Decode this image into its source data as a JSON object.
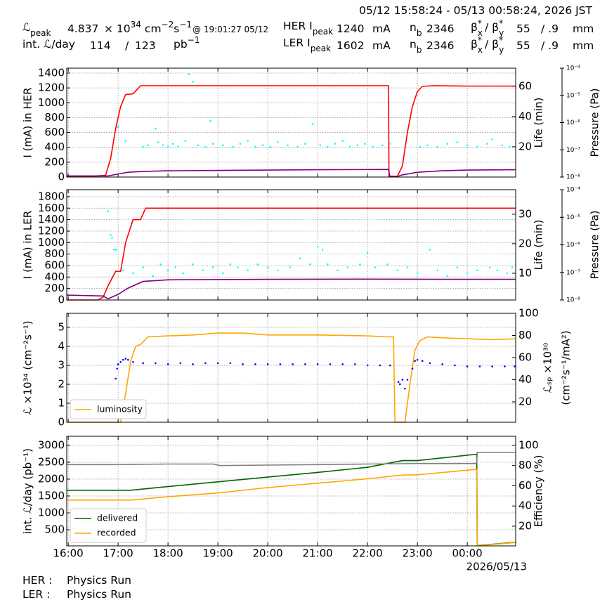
{
  "header": {
    "time_range": "05/12 15:58:24 - 05/13 00:58:24, 2026 JST",
    "lum": {
      "symbol": "ℒ",
      "sub": "peak",
      "value": 4.837,
      "times": "× 10",
      "exp": "34",
      "cm": "cm",
      "cm_exp": "−2",
      "s": "s",
      "s_exp": "−1",
      "time": "@ 19:01:27 05/12"
    },
    "int": {
      "label": "int. ℒ/day",
      "value": 114,
      "sep": "/",
      "value2": 123,
      "unit": "pb",
      "unit_exp": "−1"
    },
    "her": {
      "label": "HER I",
      "sub": "peak",
      "current": 1240,
      "unit": "mA",
      "nb": "n",
      "nb_sub": "b",
      "bunches": 2346,
      "beta": "β",
      "star": "*",
      "x": "x",
      "sep": "/ β",
      "y": "y",
      "beta_x": 55,
      "beta_y": "/ .9",
      "mm": "mm"
    },
    "ler": {
      "label": "LER I",
      "sub": "peak",
      "current": 1602,
      "unit": "mA",
      "nb": "n",
      "nb_sub": "b",
      "bunches": 2346,
      "beta": "β",
      "star": "*",
      "x": "x",
      "sep": "/ β",
      "y": "y",
      "beta_x": 55,
      "beta_y": "/ .9",
      "mm": "mm"
    }
  },
  "footer": {
    "her_label": "HER :",
    "her_state": "Physics Run",
    "ler_label": "LER :",
    "ler_state": "Physics Run"
  },
  "chart_data": [
    {
      "type": "line",
      "grid": true,
      "ylabel": "I (mA) in HER",
      "y2label": [
        "Life (min)"
      ],
      "y3label": "Pressure (Pa)",
      "xlim": [
        15.97,
        24.97
      ],
      "xticks": [
        16,
        17,
        18,
        19,
        20,
        21,
        22,
        23,
        24
      ],
      "ylim": [
        0,
        1466
      ],
      "yticks": [
        0,
        200,
        400,
        600,
        800,
        1000,
        1200,
        1400
      ],
      "y2lim": [
        0,
        72
      ],
      "y2ticks": [
        20,
        40,
        60
      ],
      "y3lim": [
        1e-08,
        0.0001
      ],
      "y3_log": true,
      "y3ticks": [
        {
          "value": 1e-08,
          "label": "10⁻⁸"
        },
        {
          "value": 1e-07,
          "label": "10⁻⁷"
        },
        {
          "value": 1e-06,
          "label": "10⁻⁶"
        },
        {
          "value": 1e-05,
          "label": "10⁻⁵"
        },
        {
          "value": 0.0001,
          "label": "10⁻⁴"
        }
      ],
      "series": [
        {
          "color": "#ff0000",
          "x": [
            15.97,
            16.5,
            16.75,
            16.85,
            16.95,
            17.05,
            17.15,
            17.3,
            17.45,
            18,
            19,
            20,
            21,
            22,
            22.42,
            22.43,
            22.6,
            22.7,
            22.8,
            22.9,
            23.0,
            23.1,
            23.3,
            24,
            24.97
          ],
          "values": [
            10,
            10,
            25,
            250,
            650,
            950,
            1110,
            1120,
            1230,
            1230,
            1230,
            1230,
            1230,
            1230,
            1230,
            10,
            10,
            150,
            600,
            950,
            1150,
            1220,
            1230,
            1225,
            1225
          ]
        },
        {
          "color": "#00ffff",
          "mode": "markers",
          "axis": "y2",
          "x": [
            17.0,
            17.15,
            17.5,
            17.6,
            17.75,
            17.8,
            17.9,
            18.0,
            18.1,
            18.2,
            18.35,
            18.42,
            18.5,
            18.6,
            18.75,
            18.85,
            18.9,
            19.1,
            19.3,
            19.45,
            19.6,
            19.75,
            19.9,
            20.05,
            20.2,
            20.4,
            20.6,
            20.75,
            20.9,
            21.05,
            21.2,
            21.35,
            21.5,
            21.65,
            21.8,
            21.95,
            22.1,
            22.3,
            22.45,
            23.05,
            23.2,
            23.4,
            23.6,
            23.8,
            24.0,
            24.2,
            24.4,
            24.5,
            24.7,
            24.85
          ],
          "values": [
            33,
            24,
            20,
            21,
            32,
            23,
            21,
            20,
            22,
            20,
            24,
            68,
            63,
            21,
            20,
            37,
            22,
            21,
            20,
            22,
            24,
            20,
            21,
            20,
            23,
            21,
            20,
            22,
            35,
            21,
            20,
            22,
            24,
            20,
            21,
            22,
            20,
            21,
            22,
            20,
            21,
            20,
            22,
            23,
            21,
            20,
            22,
            25,
            21,
            20
          ]
        },
        {
          "color": "#800080",
          "axis": "y3",
          "x": [
            15.97,
            16.8,
            17.0,
            17.2,
            17.5,
            18,
            19,
            20,
            21,
            22.42,
            22.45,
            22.6,
            22.7,
            23.0,
            23.5,
            24,
            24.97
          ],
          "values": [
            1.1e-08,
            1.1e-08,
            1.3e-08,
            1.5e-08,
            1.6e-08,
            1.7e-08,
            1.75e-08,
            1.8e-08,
            1.85e-08,
            1.9e-08,
            1.05e-08,
            1.05e-08,
            1.2e-08,
            1.5e-08,
            1.7e-08,
            1.8e-08,
            1.85e-08
          ]
        }
      ]
    },
    {
      "type": "line",
      "grid": true,
      "ylabel": "I (mA) in LER",
      "y2label": [
        "Life (min)"
      ],
      "y3label": "Pressure (Pa)",
      "xlim": [
        15.97,
        24.97
      ],
      "xticks": [
        16,
        17,
        18,
        19,
        20,
        21,
        22,
        23,
        24
      ],
      "ylim": [
        0,
        1922
      ],
      "yticks": [
        0,
        200,
        400,
        600,
        800,
        1000,
        1200,
        1400,
        1600,
        1800
      ],
      "y2lim": [
        0.95,
        38.3
      ],
      "y2ticks": [
        10,
        20,
        30
      ],
      "y3lim": [
        1e-08,
        0.0001
      ],
      "y3_log": true,
      "y3ticks": [
        {
          "value": 1e-08,
          "label": "10⁻⁸"
        },
        {
          "value": 1e-07,
          "label": "10⁻⁷"
        },
        {
          "value": 1e-06,
          "label": "10⁻⁶"
        },
        {
          "value": 1e-05,
          "label": "10⁻⁵"
        },
        {
          "value": 0.0001,
          "label": "10⁻⁴"
        }
      ],
      "series": [
        {
          "color": "#ff0000",
          "x": [
            15.97,
            16.6,
            16.7,
            16.8,
            16.95,
            17.05,
            17.15,
            17.3,
            17.45,
            17.55,
            18,
            20,
            22,
            24,
            24.97
          ],
          "values": [
            0,
            0,
            50,
            250,
            500,
            500,
            1000,
            1400,
            1400,
            1600,
            1600,
            1600,
            1600,
            1600,
            1600
          ]
        },
        {
          "color": "#00ffff",
          "mode": "markers",
          "axis": "y2",
          "x": [
            16.8,
            16.85,
            16.88,
            16.92,
            16.96,
            17.1,
            17.3,
            17.5,
            17.7,
            17.85,
            18.0,
            18.15,
            18.3,
            18.5,
            18.7,
            18.9,
            19.1,
            19.25,
            19.4,
            19.6,
            19.8,
            20.0,
            20.2,
            20.45,
            20.65,
            20.85,
            21.0,
            21.1,
            21.2,
            21.4,
            21.6,
            21.85,
            22.0,
            22.15,
            22.4,
            22.6,
            22.8,
            23.0,
            23.25,
            23.4,
            23.6,
            23.8,
            24.0,
            24.2,
            24.45,
            24.6,
            24.8,
            24.9
          ],
          "values": [
            31,
            23,
            22,
            18,
            18,
            11,
            10,
            12,
            9,
            13,
            11,
            12,
            10,
            13,
            11,
            12,
            10,
            13,
            12,
            11,
            13,
            12,
            11,
            12,
            15,
            13,
            19,
            18,
            13,
            11,
            12,
            13,
            17,
            12,
            13,
            11,
            12,
            10,
            18,
            11,
            9,
            12,
            10,
            11,
            12,
            11,
            10,
            12
          ]
        },
        {
          "color": "#800080",
          "axis": "y3",
          "x": [
            15.97,
            16.7,
            16.8,
            17.0,
            17.2,
            17.5,
            18,
            20,
            22,
            24,
            24.97
          ],
          "values": [
            1.5e-08,
            1.4e-08,
            1.1e-08,
            1.6e-08,
            2.7e-08,
            4.7e-08,
            5.4e-08,
            5.6e-08,
            5.7e-08,
            5.6e-08,
            5.6e-08
          ]
        }
      ]
    },
    {
      "type": "line",
      "grid": true,
      "legend": "lower left",
      "ylabel": "ℒ ×10³⁴ (cm⁻²s⁻¹)",
      "y2label": [
        "ℒₛₚ ×10³⁰",
        "(cm⁻²s⁻¹/mA²)"
      ],
      "xlim": [
        15.97,
        24.97
      ],
      "xticks": [
        16,
        17,
        18,
        19,
        20,
        21,
        22,
        23,
        24
      ],
      "ylim": [
        0,
        5.74
      ],
      "yticks": [
        0,
        1,
        2,
        3,
        4,
        5
      ],
      "y2lim": [
        1.6,
        100
      ],
      "y2ticks": [
        20,
        40,
        60,
        80,
        100
      ],
      "series": [
        {
          "name": "luminosity",
          "color": "#ffa500",
          "x": [
            15.97,
            17.05,
            17.15,
            17.25,
            17.35,
            17.45,
            17.6,
            18,
            18.5,
            19,
            19.5,
            20,
            21,
            22,
            22.4,
            22.52,
            22.55,
            22.75,
            22.85,
            22.95,
            23.05,
            23.2,
            23.5,
            24,
            24.5,
            24.97
          ],
          "values": [
            0,
            0,
            1.5,
            3.2,
            4.0,
            4.1,
            4.5,
            4.55,
            4.6,
            4.7,
            4.7,
            4.6,
            4.6,
            4.55,
            4.5,
            4.5,
            0,
            0,
            2.0,
            3.8,
            4.3,
            4.5,
            4.45,
            4.4,
            4.35,
            4.4
          ]
        },
        {
          "color": "#0000ff",
          "mode": "markers",
          "axis": "y2",
          "x": [
            16.95,
            16.98,
            17.0,
            17.05,
            17.1,
            17.15,
            17.2,
            17.3,
            17.5,
            17.75,
            18.0,
            18.25,
            18.5,
            18.75,
            19.0,
            19.25,
            19.5,
            19.75,
            20.0,
            20.25,
            20.5,
            20.75,
            21.0,
            21.25,
            21.5,
            21.75,
            22.0,
            22.25,
            22.45,
            22.62,
            22.65,
            22.7,
            22.75,
            22.8,
            22.9,
            22.95,
            23.0,
            23.1,
            23.25,
            23.5,
            23.75,
            24.0,
            24.25,
            24.5,
            24.75,
            24.95
          ],
          "values": [
            41,
            50,
            54,
            56,
            58,
            59,
            58,
            56,
            55,
            55,
            54,
            55,
            54,
            55,
            55,
            55,
            54,
            54,
            54,
            54,
            54,
            54,
            54,
            54,
            54,
            54,
            53,
            53,
            53,
            38,
            36,
            40,
            32,
            40,
            50,
            57,
            58,
            57,
            55,
            54,
            53,
            52,
            52,
            52,
            52,
            52
          ]
        }
      ]
    },
    {
      "type": "line",
      "grid": true,
      "legend": "lower left",
      "ylabel": "int. ℒ/day (pb⁻¹)",
      "y2label": [
        "Efficiency (%)"
      ],
      "xlabel": "2026/05/13",
      "xlim": [
        15.97,
        24.97
      ],
      "xticks": [
        {
          "value": 16,
          "label": "16:00"
        },
        {
          "value": 17,
          "label": "17:00"
        },
        {
          "value": 18,
          "label": "18:00"
        },
        {
          "value": 19,
          "label": "19:00"
        },
        {
          "value": 20,
          "label": "20:00"
        },
        {
          "value": 21,
          "label": "21:00"
        },
        {
          "value": 22,
          "label": "22:00"
        },
        {
          "value": 23,
          "label": "23:00"
        },
        {
          "value": 24,
          "label": "00:00"
        }
      ],
      "ylim": [
        21,
        3271
      ],
      "yticks": [
        500,
        1000,
        1500,
        2000,
        2500,
        3000
      ],
      "y2lim": [
        0.5,
        109
      ],
      "y2ticks": [
        20,
        40,
        60,
        80,
        100
      ],
      "series": [
        {
          "name": "delivered",
          "color": "#006400",
          "x": [
            15.97,
            17.25,
            18,
            19,
            20,
            21,
            22,
            22.7,
            23.0,
            24.19,
            24.2,
            24.97
          ],
          "values": [
            1670,
            1670,
            1780,
            1920,
            2060,
            2200,
            2350,
            2550,
            2550,
            2740,
            30,
            130
          ]
        },
        {
          "name": "recorded",
          "color": "#ffa500",
          "x": [
            15.97,
            17.25,
            18,
            19,
            20,
            21,
            22,
            22.7,
            23.0,
            24.19,
            24.2,
            24.97
          ],
          "values": [
            1380,
            1380,
            1480,
            1590,
            1750,
            1880,
            2010,
            2120,
            2130,
            2290,
            25,
            120
          ]
        },
        {
          "color": "#808080",
          "axis": "y2",
          "x": [
            15.97,
            17.0,
            18.0,
            18.9,
            19.05,
            20,
            21,
            22,
            23,
            24.19,
            24.2,
            24.97
          ],
          "values": [
            81,
            81,
            81.5,
            81.5,
            80,
            80.5,
            81,
            81.5,
            82,
            82,
            93,
            93
          ]
        }
      ]
    }
  ]
}
